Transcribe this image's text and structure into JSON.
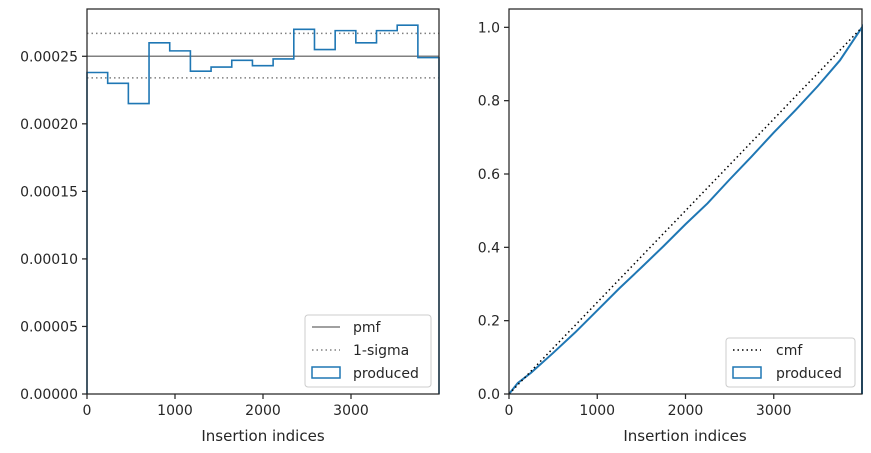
{
  "colors": {
    "pmf": "#808080",
    "sigma": "#808080",
    "produced": "#1f77b4",
    "cmf": "#000000",
    "axes": "#262626"
  },
  "chart_data": [
    {
      "type": "histogram-step",
      "xlabel": "Insertion indices",
      "ylabel": "",
      "xlim": [
        0,
        4000
      ],
      "ylim": [
        0,
        0.000285
      ],
      "xticks": [
        0,
        1000,
        2000,
        3000
      ],
      "xtick_labels": [
        "0",
        "1000",
        "2000",
        "3000"
      ],
      "yticks": [
        0,
        5e-05,
        0.0001,
        0.00015,
        0.0002,
        0.00025
      ],
      "ytick_labels": [
        "0.00000",
        "0.00005",
        "0.00010",
        "0.00015",
        "0.00020",
        "0.00025"
      ],
      "hlines": {
        "pmf": 0.00025,
        "sigma_upper": 0.000267,
        "sigma_lower": 0.000234
      },
      "bin_edges": [
        0,
        235,
        470,
        705,
        940,
        1175,
        1410,
        1645,
        1880,
        2115,
        2350,
        2585,
        2820,
        3055,
        3290,
        3525,
        3760,
        4000
      ],
      "produced": [
        0.000238,
        0.00023,
        0.000215,
        0.00026,
        0.000254,
        0.000239,
        0.000242,
        0.000247,
        0.000243,
        0.000248,
        0.00027,
        0.000255,
        0.000269,
        0.00026,
        0.000269,
        0.000273,
        0.000249
      ],
      "legend": {
        "position": "lower-right",
        "entries": [
          "pmf",
          "1-sigma",
          "produced"
        ]
      },
      "grid": false
    },
    {
      "type": "line",
      "xlabel": "Insertion indices",
      "ylabel": "",
      "xlim": [
        0,
        4000
      ],
      "ylim": [
        0,
        1.05
      ],
      "xticks": [
        0,
        1000,
        2000,
        3000
      ],
      "xtick_labels": [
        "0",
        "1000",
        "2000",
        "3000"
      ],
      "yticks": [
        0,
        0.2,
        0.4,
        0.6,
        0.8,
        1.0
      ],
      "ytick_labels": [
        "0.0",
        "0.2",
        "0.4",
        "0.6",
        "0.8",
        "1.0"
      ],
      "series": [
        {
          "name": "cmf",
          "x": [
            0,
            4000
          ],
          "y": [
            0,
            1.0
          ]
        },
        {
          "name": "produced",
          "x": [
            0,
            100,
            250,
            500,
            750,
            1000,
            1250,
            1500,
            1750,
            2000,
            2250,
            2500,
            2750,
            3000,
            3250,
            3500,
            3750,
            4000
          ],
          "y": [
            0,
            0.03,
            0.058,
            0.112,
            0.168,
            0.228,
            0.288,
            0.345,
            0.403,
            0.463,
            0.52,
            0.585,
            0.648,
            0.713,
            0.775,
            0.84,
            0.91,
            1.0
          ]
        }
      ],
      "legend": {
        "position": "lower-right",
        "entries": [
          "cmf",
          "produced"
        ]
      },
      "grid": false
    }
  ]
}
